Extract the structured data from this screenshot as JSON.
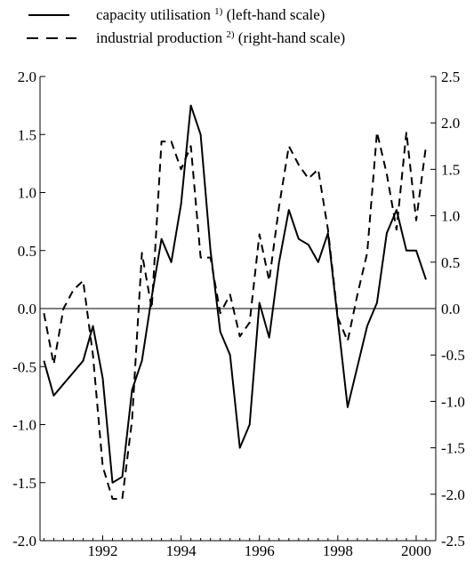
{
  "legend": {
    "items": [
      {
        "text": "capacity utilisation",
        "sup": "1)",
        "suffix": "(left-hand scale)",
        "dash": "solid"
      },
      {
        "text": "industrial production",
        "sup": "2)",
        "suffix": "(right-hand scale)",
        "dash": "dashed"
      }
    ]
  },
  "chart_data": {
    "type": "line",
    "title": "",
    "xlabel": "",
    "x_range": [
      1990.4,
      2000.5
    ],
    "x_ticks": [
      1992,
      1994,
      1996,
      1998,
      2000
    ],
    "x_tick_labels": [
      "1992",
      "1994",
      "1996",
      "1998",
      "2000"
    ],
    "y_left": {
      "range": [
        -2.0,
        2.0
      ],
      "ticks": [
        -2.0,
        -1.5,
        -1.0,
        -0.5,
        0.0,
        0.5,
        1.0,
        1.5,
        2.0
      ],
      "tick_labels": [
        "-2.0",
        "-1.5",
        "-1.0",
        "-0.5",
        "0.0",
        "0.5",
        "1.0",
        "1.5",
        "2.0"
      ]
    },
    "y_right": {
      "range": [
        -2.5,
        2.5
      ],
      "ticks": [
        -2.5,
        -2.0,
        -1.5,
        -1.0,
        -0.5,
        0.0,
        0.5,
        1.0,
        1.5,
        2.0,
        2.5
      ],
      "tick_labels": [
        "-2.5",
        "-2.0",
        "-1.5",
        "-1.0",
        "-0.5",
        "0.0",
        "0.5",
        "1.0",
        "1.5",
        "2.0",
        "2.5"
      ]
    },
    "zero_line": true,
    "grid": false,
    "legend_position": "top",
    "series": [
      {
        "name": "capacity utilisation 1) (left-hand scale)",
        "axis": "left",
        "style": "solid",
        "color": "#000000",
        "points": [
          [
            1990.5,
            -0.45
          ],
          [
            1990.75,
            -0.75
          ],
          [
            1991.0,
            -0.65
          ],
          [
            1991.25,
            -0.55
          ],
          [
            1991.5,
            -0.45
          ],
          [
            1991.75,
            -0.15
          ],
          [
            1992.0,
            -0.6
          ],
          [
            1992.25,
            -1.5
          ],
          [
            1992.5,
            -1.45
          ],
          [
            1992.75,
            -0.7
          ],
          [
            1993.0,
            -0.45
          ],
          [
            1993.25,
            0.1
          ],
          [
            1993.5,
            0.6
          ],
          [
            1993.75,
            0.4
          ],
          [
            1994.0,
            0.9
          ],
          [
            1994.25,
            1.75
          ],
          [
            1994.5,
            1.5
          ],
          [
            1994.75,
            0.5
          ],
          [
            1995.0,
            -0.2
          ],
          [
            1995.25,
            -0.4
          ],
          [
            1995.5,
            -1.2
          ],
          [
            1995.75,
            -1.0
          ],
          [
            1996.0,
            0.05
          ],
          [
            1996.25,
            -0.25
          ],
          [
            1996.5,
            0.4
          ],
          [
            1996.75,
            0.85
          ],
          [
            1997.0,
            0.6
          ],
          [
            1997.25,
            0.55
          ],
          [
            1997.5,
            0.4
          ],
          [
            1997.75,
            0.65
          ],
          [
            1998.0,
            -0.1
          ],
          [
            1998.25,
            -0.85
          ],
          [
            1998.5,
            -0.5
          ],
          [
            1998.75,
            -0.15
          ],
          [
            1999.0,
            0.05
          ],
          [
            1999.25,
            0.65
          ],
          [
            1999.5,
            0.85
          ],
          [
            1999.75,
            0.5
          ],
          [
            2000.0,
            0.5
          ],
          [
            2000.25,
            0.25
          ]
        ]
      },
      {
        "name": "industrial production 2) (right-hand scale)",
        "axis": "right",
        "style": "dashed",
        "color": "#000000",
        "points": [
          [
            1990.5,
            -0.05
          ],
          [
            1990.75,
            -0.6
          ],
          [
            1991.0,
            0.0
          ],
          [
            1991.25,
            0.2
          ],
          [
            1991.5,
            0.3
          ],
          [
            1991.75,
            -0.5
          ],
          [
            1992.0,
            -1.7
          ],
          [
            1992.25,
            -2.05
          ],
          [
            1992.5,
            -2.05
          ],
          [
            1992.75,
            -1.2
          ],
          [
            1993.0,
            0.6
          ],
          [
            1993.25,
            0.0
          ],
          [
            1993.5,
            1.8
          ],
          [
            1993.75,
            1.8
          ],
          [
            1994.0,
            1.5
          ],
          [
            1994.25,
            1.75
          ],
          [
            1994.5,
            0.55
          ],
          [
            1994.75,
            0.55
          ],
          [
            1995.0,
            -0.05
          ],
          [
            1995.25,
            0.15
          ],
          [
            1995.5,
            -0.3
          ],
          [
            1995.75,
            -0.15
          ],
          [
            1996.0,
            0.8
          ],
          [
            1996.25,
            0.3
          ],
          [
            1996.5,
            1.1
          ],
          [
            1996.75,
            1.75
          ],
          [
            1997.0,
            1.55
          ],
          [
            1997.25,
            1.4
          ],
          [
            1997.5,
            1.5
          ],
          [
            1997.75,
            0.85
          ],
          [
            1998.0,
            -0.1
          ],
          [
            1998.25,
            -0.35
          ],
          [
            1998.5,
            0.15
          ],
          [
            1998.75,
            0.6
          ],
          [
            1999.0,
            1.9
          ],
          [
            1999.25,
            1.45
          ],
          [
            1999.5,
            0.85
          ],
          [
            1999.75,
            1.9
          ],
          [
            2000.0,
            0.95
          ],
          [
            2000.25,
            1.75
          ]
        ]
      }
    ]
  }
}
